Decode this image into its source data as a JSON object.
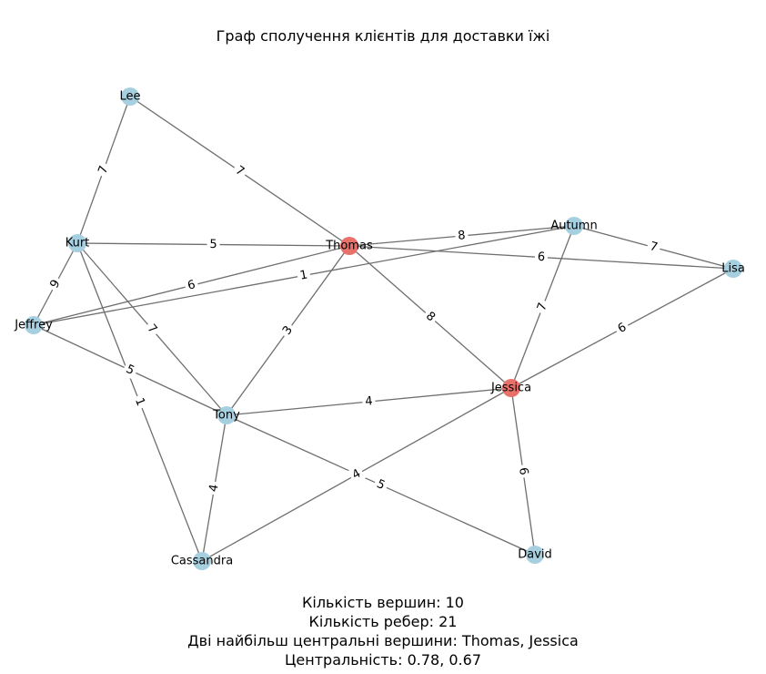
{
  "title": "Граф сполучення клієнтів для доставки їжі",
  "colors": {
    "node_default": "#a6d0e0",
    "node_central": "#e8726b",
    "edge": "#6f6f6f"
  },
  "nodes": [
    {
      "id": "Lee",
      "label": "Lee",
      "central": false
    },
    {
      "id": "Kurt",
      "label": "Kurt",
      "central": false
    },
    {
      "id": "Jeffrey",
      "label": "Jeffrey",
      "central": false
    },
    {
      "id": "Thomas",
      "label": "Thomas",
      "central": true
    },
    {
      "id": "Autumn",
      "label": "Autumn",
      "central": false
    },
    {
      "id": "Lisa",
      "label": "Lisa",
      "central": false
    },
    {
      "id": "Jessica",
      "label": "Jessica",
      "central": true
    },
    {
      "id": "Tony",
      "label": "Tony",
      "central": false
    },
    {
      "id": "Cassandra",
      "label": "Cassandra",
      "central": false
    },
    {
      "id": "David",
      "label": "David",
      "central": false
    }
  ],
  "edges": [
    {
      "source": "Lee",
      "target": "Kurt",
      "weight": "7"
    },
    {
      "source": "Lee",
      "target": "Thomas",
      "weight": "7"
    },
    {
      "source": "Kurt",
      "target": "Thomas",
      "weight": "5"
    },
    {
      "source": "Kurt",
      "target": "Jeffrey",
      "weight": "9"
    },
    {
      "source": "Kurt",
      "target": "Tony",
      "weight": "7"
    },
    {
      "source": "Kurt",
      "target": "Cassandra",
      "weight": "1"
    },
    {
      "source": "Jeffrey",
      "target": "Thomas",
      "weight": "6"
    },
    {
      "source": "Jeffrey",
      "target": "Autumn",
      "weight": "1"
    },
    {
      "source": "Jeffrey",
      "target": "Tony",
      "weight": "5"
    },
    {
      "source": "Thomas",
      "target": "Autumn",
      "weight": "8"
    },
    {
      "source": "Thomas",
      "target": "Lisa",
      "weight": "6"
    },
    {
      "source": "Thomas",
      "target": "Jessica",
      "weight": "8"
    },
    {
      "source": "Thomas",
      "target": "Tony",
      "weight": "3"
    },
    {
      "source": "Autumn",
      "target": "Lisa",
      "weight": "7"
    },
    {
      "source": "Autumn",
      "target": "Jessica",
      "weight": "7"
    },
    {
      "source": "Lisa",
      "target": "Jessica",
      "weight": "6"
    },
    {
      "source": "Jessica",
      "target": "Tony",
      "weight": "4"
    },
    {
      "source": "Jessica",
      "target": "Cassandra",
      "weight": "4"
    },
    {
      "source": "Jessica",
      "target": "David",
      "weight": "6"
    },
    {
      "source": "Tony",
      "target": "Cassandra",
      "weight": "4"
    },
    {
      "source": "Tony",
      "target": "David",
      "weight": "5"
    }
  ],
  "stats": {
    "line1": "Кількість вершин: 10",
    "line2": "Кількість ребер: 21",
    "line3": "Дві найбільш центральні вершини: Thomas, Jessica",
    "line4": "Центральність: 0.78, 0.67"
  }
}
